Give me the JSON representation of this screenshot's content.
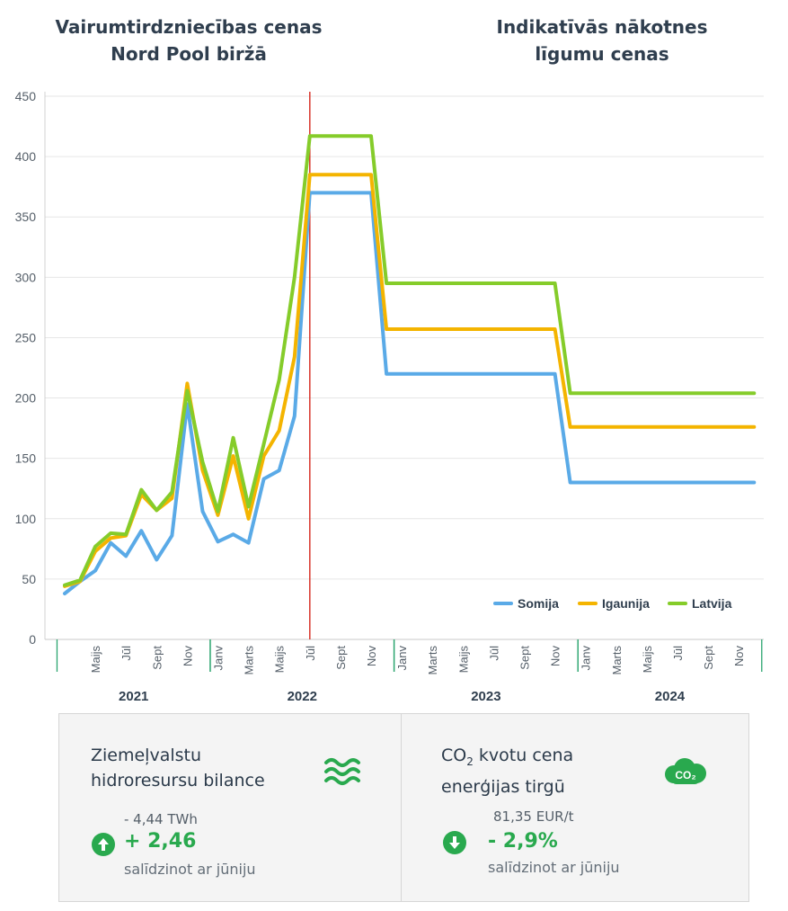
{
  "headings": {
    "left_line1": "Vairumtirdzniecības cenas",
    "left_line2": "Nord Pool biržā",
    "right_line1": "Indikatīvās nākotnes",
    "right_line2": "līgumu cenas"
  },
  "chart_data": {
    "type": "line",
    "ylim": [
      0,
      450
    ],
    "yticks": [
      0,
      50,
      100,
      150,
      200,
      250,
      300,
      350,
      400,
      450
    ],
    "grid": true,
    "legend_position": "bottom-right",
    "divider_after": "2022-07",
    "months": [
      "2021-03",
      "2021-04",
      "2021-05",
      "2021-06",
      "2021-07",
      "2021-08",
      "2021-09",
      "2021-10",
      "2021-11",
      "2021-12",
      "2022-01",
      "2022-02",
      "2022-03",
      "2022-04",
      "2022-05",
      "2022-06",
      "2022-07",
      "2022-08",
      "2022-09",
      "2022-10",
      "2022-11",
      "2022-12",
      "2023-01",
      "2023-02",
      "2023-03",
      "2023-04",
      "2023-05",
      "2023-06",
      "2023-07",
      "2023-08",
      "2023-09",
      "2023-10",
      "2023-11",
      "2023-12",
      "2024-01",
      "2024-02",
      "2024-03",
      "2024-04",
      "2024-05",
      "2024-06",
      "2024-07",
      "2024-08",
      "2024-09",
      "2024-10",
      "2024-11",
      "2024-12"
    ],
    "month_labels": [
      "Maijs",
      "Jūl",
      "Sept",
      "Nov",
      "Janv",
      "Marts",
      "Maijs",
      "Jūl",
      "Sept",
      "Nov",
      "Janv",
      "Marts",
      "Maijs",
      "Jūl",
      "Sept",
      "Nov",
      "Janv",
      "Marts",
      "Maijs",
      "Jūl",
      "Sept",
      "Nov"
    ],
    "month_label_months": [
      "2021-05",
      "2021-07",
      "2021-09",
      "2021-11",
      "2022-01",
      "2022-03",
      "2022-05",
      "2022-07",
      "2022-09",
      "2022-11",
      "2023-01",
      "2023-03",
      "2023-05",
      "2023-07",
      "2023-09",
      "2023-11",
      "2024-01",
      "2024-03",
      "2024-05",
      "2024-07",
      "2024-09",
      "2024-11"
    ],
    "years": [
      {
        "label": "2021",
        "from": "2021-03",
        "to": "2021-12"
      },
      {
        "label": "2022",
        "from": "2022-01",
        "to": "2022-12"
      },
      {
        "label": "2023",
        "from": "2023-01",
        "to": "2023-12"
      },
      {
        "label": "2024",
        "from": "2024-01",
        "to": "2024-12"
      }
    ],
    "series": [
      {
        "name": "Somija",
        "color": "#5aaae7",
        "values": [
          38,
          48,
          57,
          80,
          69,
          90,
          66,
          86,
          195,
          106,
          81,
          87,
          80,
          133,
          140,
          185,
          370,
          370,
          370,
          370,
          370,
          220,
          220,
          220,
          220,
          220,
          220,
          220,
          220,
          220,
          220,
          220,
          220,
          130,
          130,
          130,
          130,
          130,
          130,
          130,
          130,
          130,
          130,
          130,
          130,
          130
        ]
      },
      {
        "name": "Igaunija",
        "color": "#f4b400",
        "values": [
          44,
          48,
          73,
          84,
          86,
          120,
          107,
          117,
          212,
          140,
          103,
          152,
          100,
          152,
          173,
          234,
          385,
          385,
          385,
          385,
          385,
          257,
          257,
          257,
          257,
          257,
          257,
          257,
          257,
          257,
          257,
          257,
          257,
          176,
          176,
          176,
          176,
          176,
          176,
          176,
          176,
          176,
          176,
          176,
          176,
          176
        ]
      },
      {
        "name": "Latvija",
        "color": "#85cc2a",
        "values": [
          45,
          49,
          77,
          88,
          87,
          124,
          107,
          122,
          206,
          147,
          106,
          167,
          110,
          162,
          215,
          300,
          417,
          417,
          417,
          417,
          417,
          295,
          295,
          295,
          295,
          295,
          295,
          295,
          295,
          295,
          295,
          295,
          295,
          204,
          204,
          204,
          204,
          204,
          204,
          204,
          204,
          204,
          204,
          204,
          204,
          204
        ]
      }
    ]
  },
  "hydro_card": {
    "title_line1": "Ziemeļvalstu",
    "title_line2": "hidroresursu bilance",
    "sub": "- 4,44 TWh",
    "value": "+ 2,46",
    "note": "salīdzinot ar jūniju",
    "icon": "waves-icon",
    "arrow": "up",
    "accent": "#29a94e"
  },
  "co2_card": {
    "title_line1_prefix": "CO",
    "title_line1_sub": "2",
    "title_line1_suffix": " kvotu cena",
    "title_line2": "enerģijas tirgū",
    "sub": "81,35 EUR/t",
    "value": "- 2,9%",
    "note": "salīdzinot ar jūniju",
    "icon_label": "CO₂",
    "icon": "co2-cloud-icon",
    "arrow": "down",
    "accent": "#29a94e"
  }
}
